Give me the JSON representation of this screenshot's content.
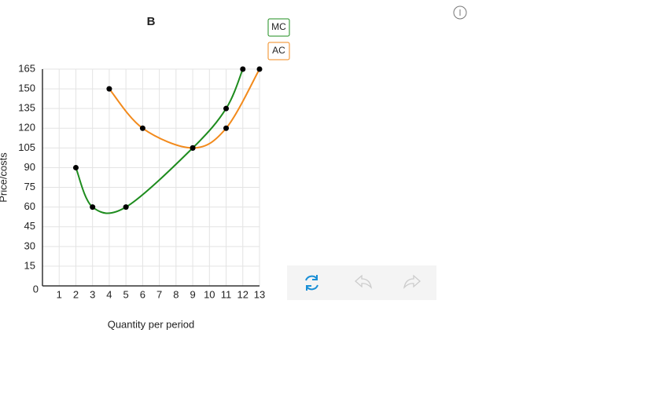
{
  "chart_data": {
    "type": "line",
    "title": "B",
    "x_label": "Quantity per period",
    "y_label": "Price/costs",
    "xlim": [
      0,
      13
    ],
    "xticks": [
      1,
      2,
      3,
      4,
      5,
      6,
      7,
      8,
      9,
      10,
      11,
      12,
      13
    ],
    "ylim": [
      0,
      165
    ],
    "yticks": [
      0,
      15,
      30,
      45,
      60,
      75,
      90,
      105,
      120,
      135,
      150,
      165
    ],
    "grid": true,
    "series": [
      {
        "name": "MC",
        "color": "#1e8c1e",
        "x": [
          2,
          3,
          5,
          9,
          11,
          12
        ],
        "values": [
          90,
          60,
          60,
          105,
          135,
          165
        ]
      },
      {
        "name": "AC",
        "color": "#f28a1c",
        "x": [
          4,
          6,
          9,
          11,
          13
        ],
        "values": [
          150,
          120,
          105,
          120,
          165
        ]
      }
    ]
  }
}
